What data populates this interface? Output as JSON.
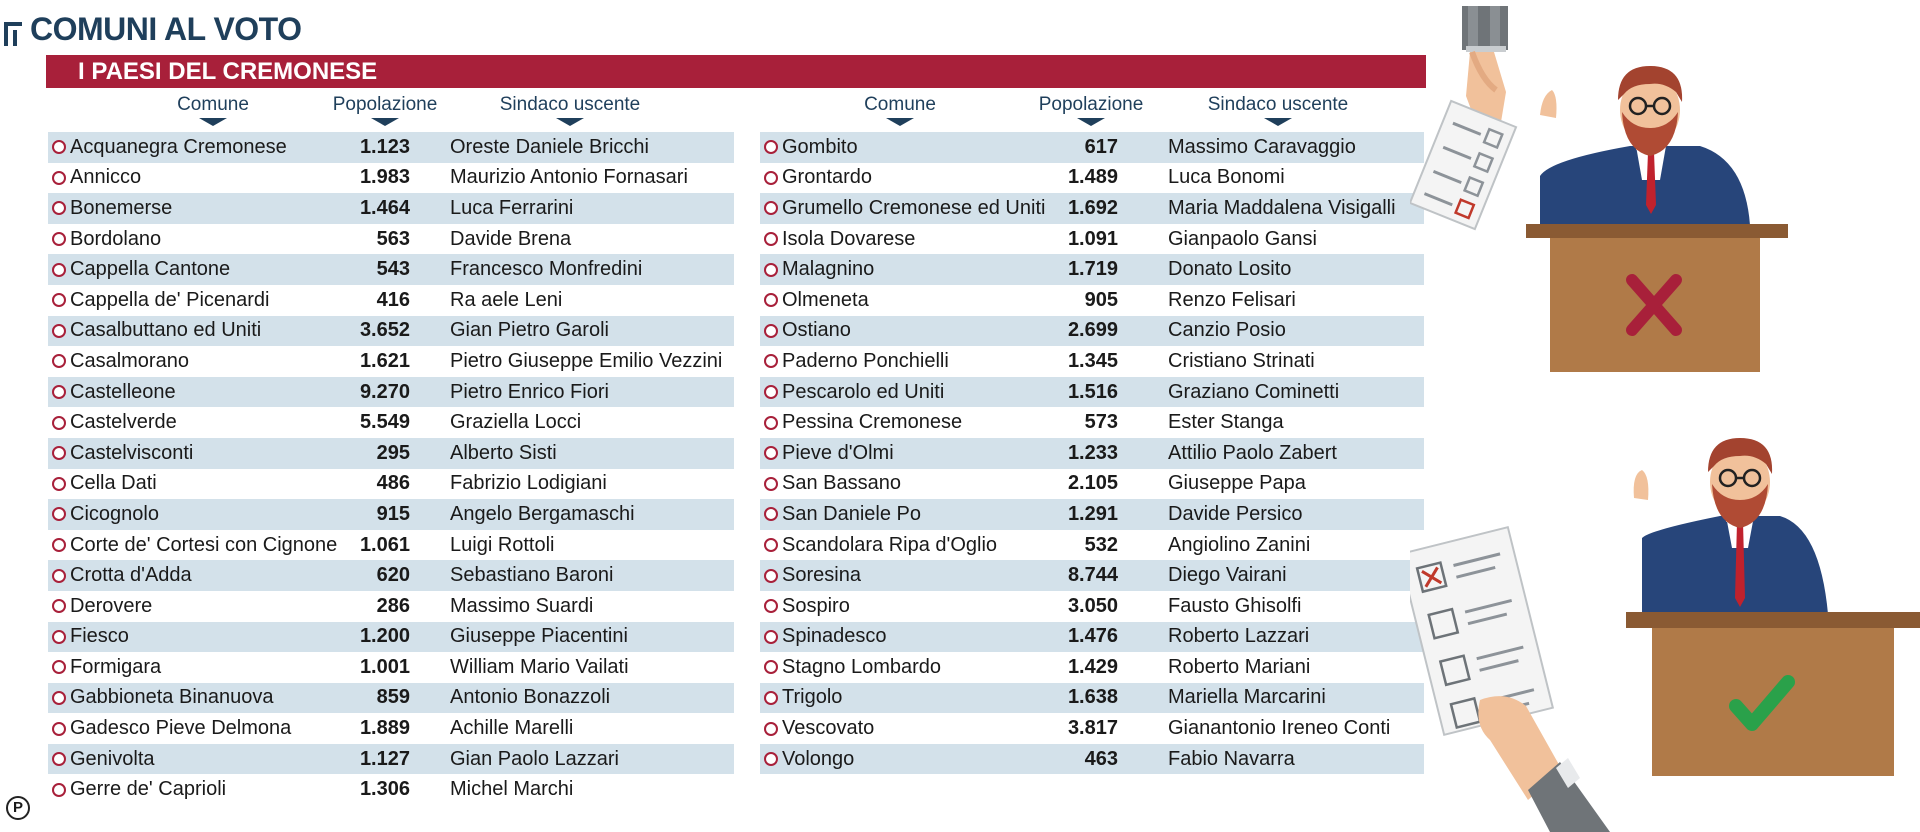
{
  "header": {
    "title": "COMUNI AL VOTO",
    "banner": "I PAESI DEL CREMONESE"
  },
  "columns": {
    "comune": "Comune",
    "popolazione": "Popolazione",
    "sindaco": "Sindaco uscente"
  },
  "left_rows": [
    {
      "comune": "Acquanegra Cremonese",
      "pop": "1.123",
      "sindaco": "Oreste Daniele Bricchi"
    },
    {
      "comune": "Annicco",
      "pop": "1.983",
      "sindaco": "Maurizio Antonio Fornasari"
    },
    {
      "comune": "Bonemerse",
      "pop": "1.464",
      "sindaco": "Luca Ferrarini"
    },
    {
      "comune": "Bordolano",
      "pop": "563",
      "sindaco": "Davide Brena"
    },
    {
      "comune": "Cappella Cantone",
      "pop": "543",
      "sindaco": "Francesco Monfredini"
    },
    {
      "comune": "Cappella de' Picenardi",
      "pop": "416",
      "sindaco": "Ra  aele Leni"
    },
    {
      "comune": "Casalbuttano ed Uniti",
      "pop": "3.652",
      "sindaco": "Gian Pietro Garoli"
    },
    {
      "comune": "Casalmorano",
      "pop": "1.621",
      "sindaco": "Pietro Giuseppe Emilio Vezzini"
    },
    {
      "comune": "Castelleone",
      "pop": "9.270",
      "sindaco": "Pietro Enrico Fiori"
    },
    {
      "comune": "Castelverde",
      "pop": "5.549",
      "sindaco": "Graziella Locci"
    },
    {
      "comune": "Castelvisconti",
      "pop": "295",
      "sindaco": "Alberto Sisti"
    },
    {
      "comune": "Cella Dati",
      "pop": "486",
      "sindaco": "Fabrizio Lodigiani"
    },
    {
      "comune": "Cicognolo",
      "pop": "915",
      "sindaco": "Angelo Bergamaschi"
    },
    {
      "comune": "Corte de' Cortesi con Cignone",
      "pop": "1.061",
      "sindaco": "Luigi Rottoli"
    },
    {
      "comune": "Crotta d'Adda",
      "pop": "620",
      "sindaco": "Sebastiano Baroni"
    },
    {
      "comune": "Derovere",
      "pop": "286",
      "sindaco": "Massimo Suardi"
    },
    {
      "comune": "Fiesco",
      "pop": "1.200",
      "sindaco": "Giuseppe Piacentini"
    },
    {
      "comune": "Formigara",
      "pop": "1.001",
      "sindaco": "William Mario Vailati"
    },
    {
      "comune": "Gabbioneta Binanuova",
      "pop": "859",
      "sindaco": "Antonio Bonazzoli"
    },
    {
      "comune": "Gadesco Pieve Delmona",
      "pop": "1.889",
      "sindaco": "Achille Marelli"
    },
    {
      "comune": "Genivolta",
      "pop": "1.127",
      "sindaco": "Gian Paolo Lazzari"
    },
    {
      "comune": "Gerre de' Caprioli",
      "pop": "1.306",
      "sindaco": "Michel Marchi"
    }
  ],
  "right_rows": [
    {
      "comune": "Gombito",
      "pop": "617",
      "sindaco": "Massimo Caravaggio"
    },
    {
      "comune": "Grontardo",
      "pop": "1.489",
      "sindaco": "Luca Bonomi"
    },
    {
      "comune": "Grumello Cremonese ed Uniti",
      "pop": "1.692",
      "sindaco": "Maria Maddalena Visigalli"
    },
    {
      "comune": "Isola Dovarese",
      "pop": "1.091",
      "sindaco": "Gianpaolo Gansi"
    },
    {
      "comune": "Malagnino",
      "pop": "1.719",
      "sindaco": "Donato Losito"
    },
    {
      "comune": "Olmeneta",
      "pop": "905",
      "sindaco": "Renzo Felisari"
    },
    {
      "comune": "Ostiano",
      "pop": "2.699",
      "sindaco": "Canzio Posio"
    },
    {
      "comune": "Paderno Ponchielli",
      "pop": "1.345",
      "sindaco": "Cristiano Strinati"
    },
    {
      "comune": "Pescarolo ed Uniti",
      "pop": "1.516",
      "sindaco": "Graziano Cominetti"
    },
    {
      "comune": "Pessina Cremonese",
      "pop": "573",
      "sindaco": "Ester Stanga"
    },
    {
      "comune": "Pieve d'Olmi",
      "pop": "1.233",
      "sindaco": "Attilio Paolo Zabert"
    },
    {
      "comune": "San Bassano",
      "pop": "2.105",
      "sindaco": "Giuseppe Papa"
    },
    {
      "comune": "San Daniele Po",
      "pop": "1.291",
      "sindaco": "Davide Persico"
    },
    {
      "comune": "Scandolara Ripa d'Oglio",
      "pop": "532",
      "sindaco": "Angiolino Zanini"
    },
    {
      "comune": "Soresina",
      "pop": "8.744",
      "sindaco": "Diego Vairani"
    },
    {
      "comune": "Sospiro",
      "pop": "3.050",
      "sindaco": "Fausto Ghisolfi"
    },
    {
      "comune": "Spinadesco",
      "pop": "1.476",
      "sindaco": "Roberto Lazzari"
    },
    {
      "comune": "Stagno Lombardo",
      "pop": "1.429",
      "sindaco": "Roberto Mariani"
    },
    {
      "comune": "Trigolo",
      "pop": "1.638",
      "sindaco": "Mariella Marcarini"
    },
    {
      "comune": "Vescovato",
      "pop": "3.817",
      "sindaco": "Gianantonio Ireneo Conti"
    },
    {
      "comune": "Volongo",
      "pop": "463",
      "sindaco": "Fabio Navarra"
    }
  ],
  "footer": {
    "logo_letter": "P"
  },
  "colors": {
    "accent": "#a8203a",
    "title": "#1f3f5b",
    "row_alt": "#d3e1ea"
  },
  "icons": [
    "ballot-box-icon",
    "candidate-rejected-icon",
    "candidate-approved-icon",
    "ballot-paper-icon"
  ]
}
